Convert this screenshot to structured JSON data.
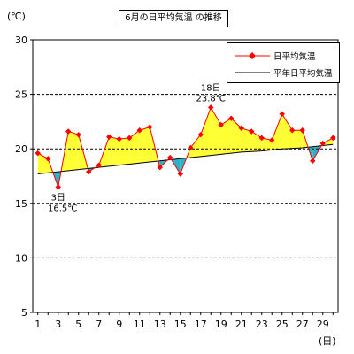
{
  "chart_data": {
    "type": "line",
    "title": "6月の日平均気温 の推移",
    "ylabel": "(℃)",
    "xlabel": "(日)",
    "ylim": [
      5,
      30
    ],
    "yticks": [
      5,
      10,
      15,
      20,
      25,
      30
    ],
    "xticks": [
      1,
      3,
      5,
      7,
      9,
      11,
      13,
      15,
      17,
      19,
      21,
      23,
      25,
      27,
      29
    ],
    "grid": "horizontal dashed",
    "legend_position": "top-right",
    "x": [
      1,
      2,
      3,
      4,
      5,
      6,
      7,
      8,
      9,
      10,
      11,
      12,
      13,
      14,
      15,
      16,
      17,
      18,
      19,
      20,
      21,
      22,
      23,
      24,
      25,
      26,
      27,
      28,
      29,
      30
    ],
    "series": [
      {
        "name": "日平均気温",
        "values": [
          19.6,
          19.1,
          16.5,
          21.6,
          21.3,
          17.9,
          18.5,
          21.1,
          20.9,
          21.0,
          21.7,
          22.0,
          18.3,
          19.2,
          17.7,
          20.1,
          21.3,
          23.8,
          22.2,
          22.8,
          21.9,
          21.6,
          21.0,
          20.8,
          23.2,
          21.7,
          21.7,
          18.9,
          20.5,
          21.0
        ],
        "color": "#ff0000"
      },
      {
        "name": "平年日平均気温",
        "values": [
          17.7,
          17.8,
          17.9,
          18.0,
          18.1,
          18.2,
          18.3,
          18.4,
          18.5,
          18.6,
          18.7,
          18.8,
          18.9,
          19.0,
          19.1,
          19.2,
          19.3,
          19.4,
          19.5,
          19.6,
          19.7,
          19.75,
          19.8,
          19.9,
          20.0,
          20.05,
          20.1,
          20.2,
          20.3,
          20.4
        ],
        "color": "#000000"
      }
    ],
    "annotations": [
      {
        "day_label": "3日",
        "value_label": "16.5℃"
      },
      {
        "day_label": "18日",
        "value_label": "23.8℃"
      }
    ],
    "fill_above_normal": "#ffff33",
    "fill_below_normal": "#2ab3c8"
  }
}
